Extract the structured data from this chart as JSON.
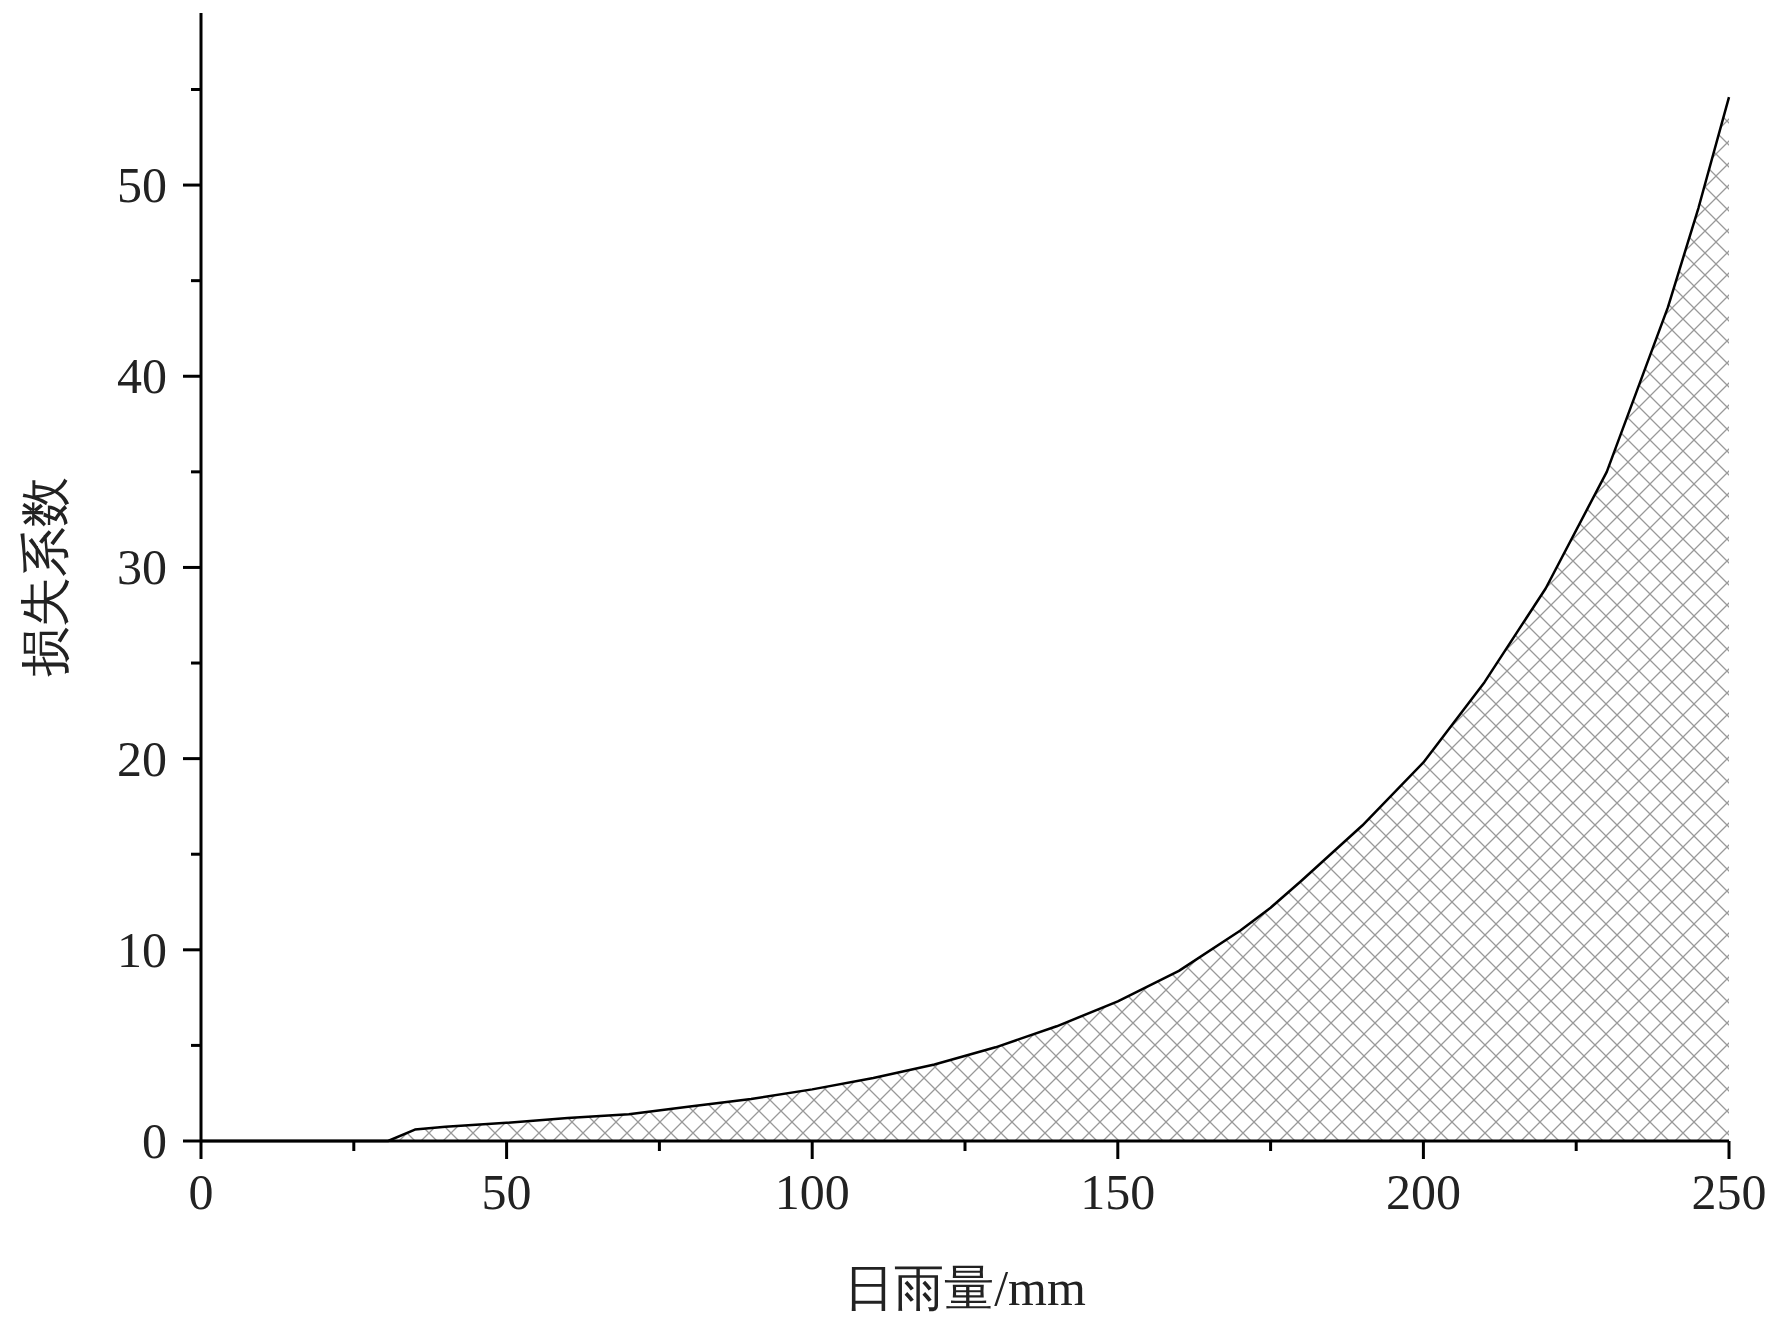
{
  "chart_data": {
    "type": "area",
    "xlabel": "日雨量/mm",
    "ylabel": "损失系数",
    "x": [
      0,
      30.6,
      35,
      40,
      50,
      60,
      70,
      80,
      90,
      100,
      110,
      120,
      130,
      140,
      150,
      160,
      170,
      175,
      180,
      190,
      200,
      210,
      220,
      230,
      240,
      245,
      250
    ],
    "series": [
      {
        "color": "#000000",
        "values": [
          0,
          0,
          0.6,
          0.75,
          0.95,
          1.2,
          1.4,
          1.8,
          2.2,
          2.7,
          3.3,
          4.0,
          4.9,
          6.0,
          7.3,
          8.9,
          11.0,
          12.2,
          13.6,
          16.5,
          19.8,
          24,
          28.9,
          35,
          43.6,
          48.8,
          54.6
        ]
      }
    ],
    "xlim": [
      0,
      250
    ],
    "ylim": [
      0,
      59
    ],
    "xticks": [
      0,
      {
        "value": 25,
        "label": null
      },
      50,
      {
        "value": 75,
        "label": null
      },
      100,
      {
        "value": 125,
        "label": null
      },
      150,
      {
        "value": 175,
        "label": null
      },
      200,
      {
        "value": 225,
        "label": null
      },
      250
    ],
    "yticks": [
      0,
      {
        "value": 5,
        "label": null
      },
      10,
      {
        "value": 15,
        "label": null
      },
      20,
      {
        "value": 25,
        "label": null
      },
      30,
      {
        "value": 35,
        "label": null
      },
      40,
      {
        "value": 45,
        "label": null
      },
      50,
      {
        "value": 55,
        "label": null
      }
    ],
    "grid": false
  }
}
